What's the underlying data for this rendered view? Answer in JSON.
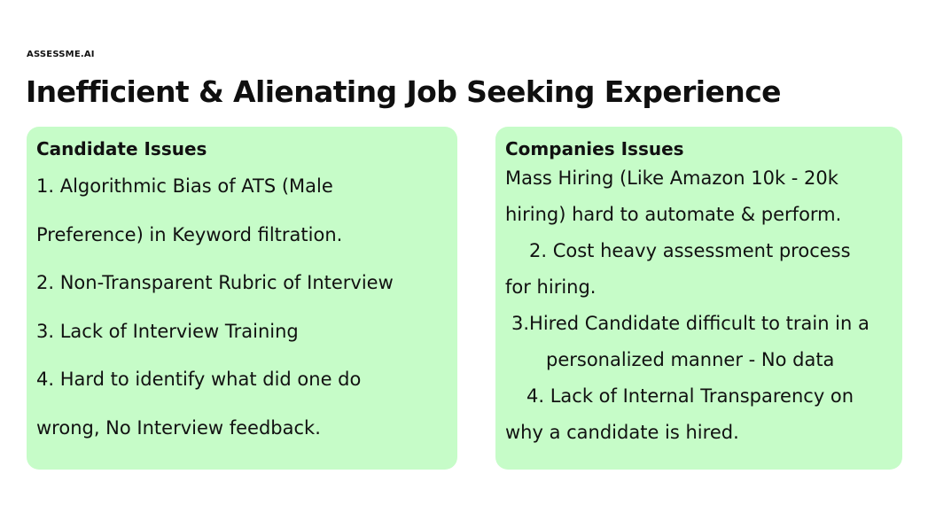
{
  "brand": "ASSESSME.AI",
  "title": "Inefficient & Alienating Job Seeking Experience",
  "candidate": {
    "heading": "Candidate Issues",
    "lines": [
      "1. Algorithmic Bias of ATS (Male",
      "Preference) in Keyword filtration.",
      "2. Non-Transparent Rubric of Interview",
      "3. Lack of Interview Training",
      "4. Hard to identify what did one do",
      "wrong, No Interview feedback."
    ]
  },
  "companies": {
    "heading": "Companies Issues",
    "lines": [
      "Mass Hiring (Like Amazon 10k - 20k",
      "hiring) hard to automate & perform.",
      "2. Cost heavy assessment process",
      "for hiring.",
      "3.Hired Candidate difficult to train in a",
      "personalized manner - No data",
      "4. Lack of Internal Transparency on",
      "why a candidate is hired."
    ]
  },
  "colors": {
    "card_background": "#c6fcc8",
    "text": "#111111"
  }
}
